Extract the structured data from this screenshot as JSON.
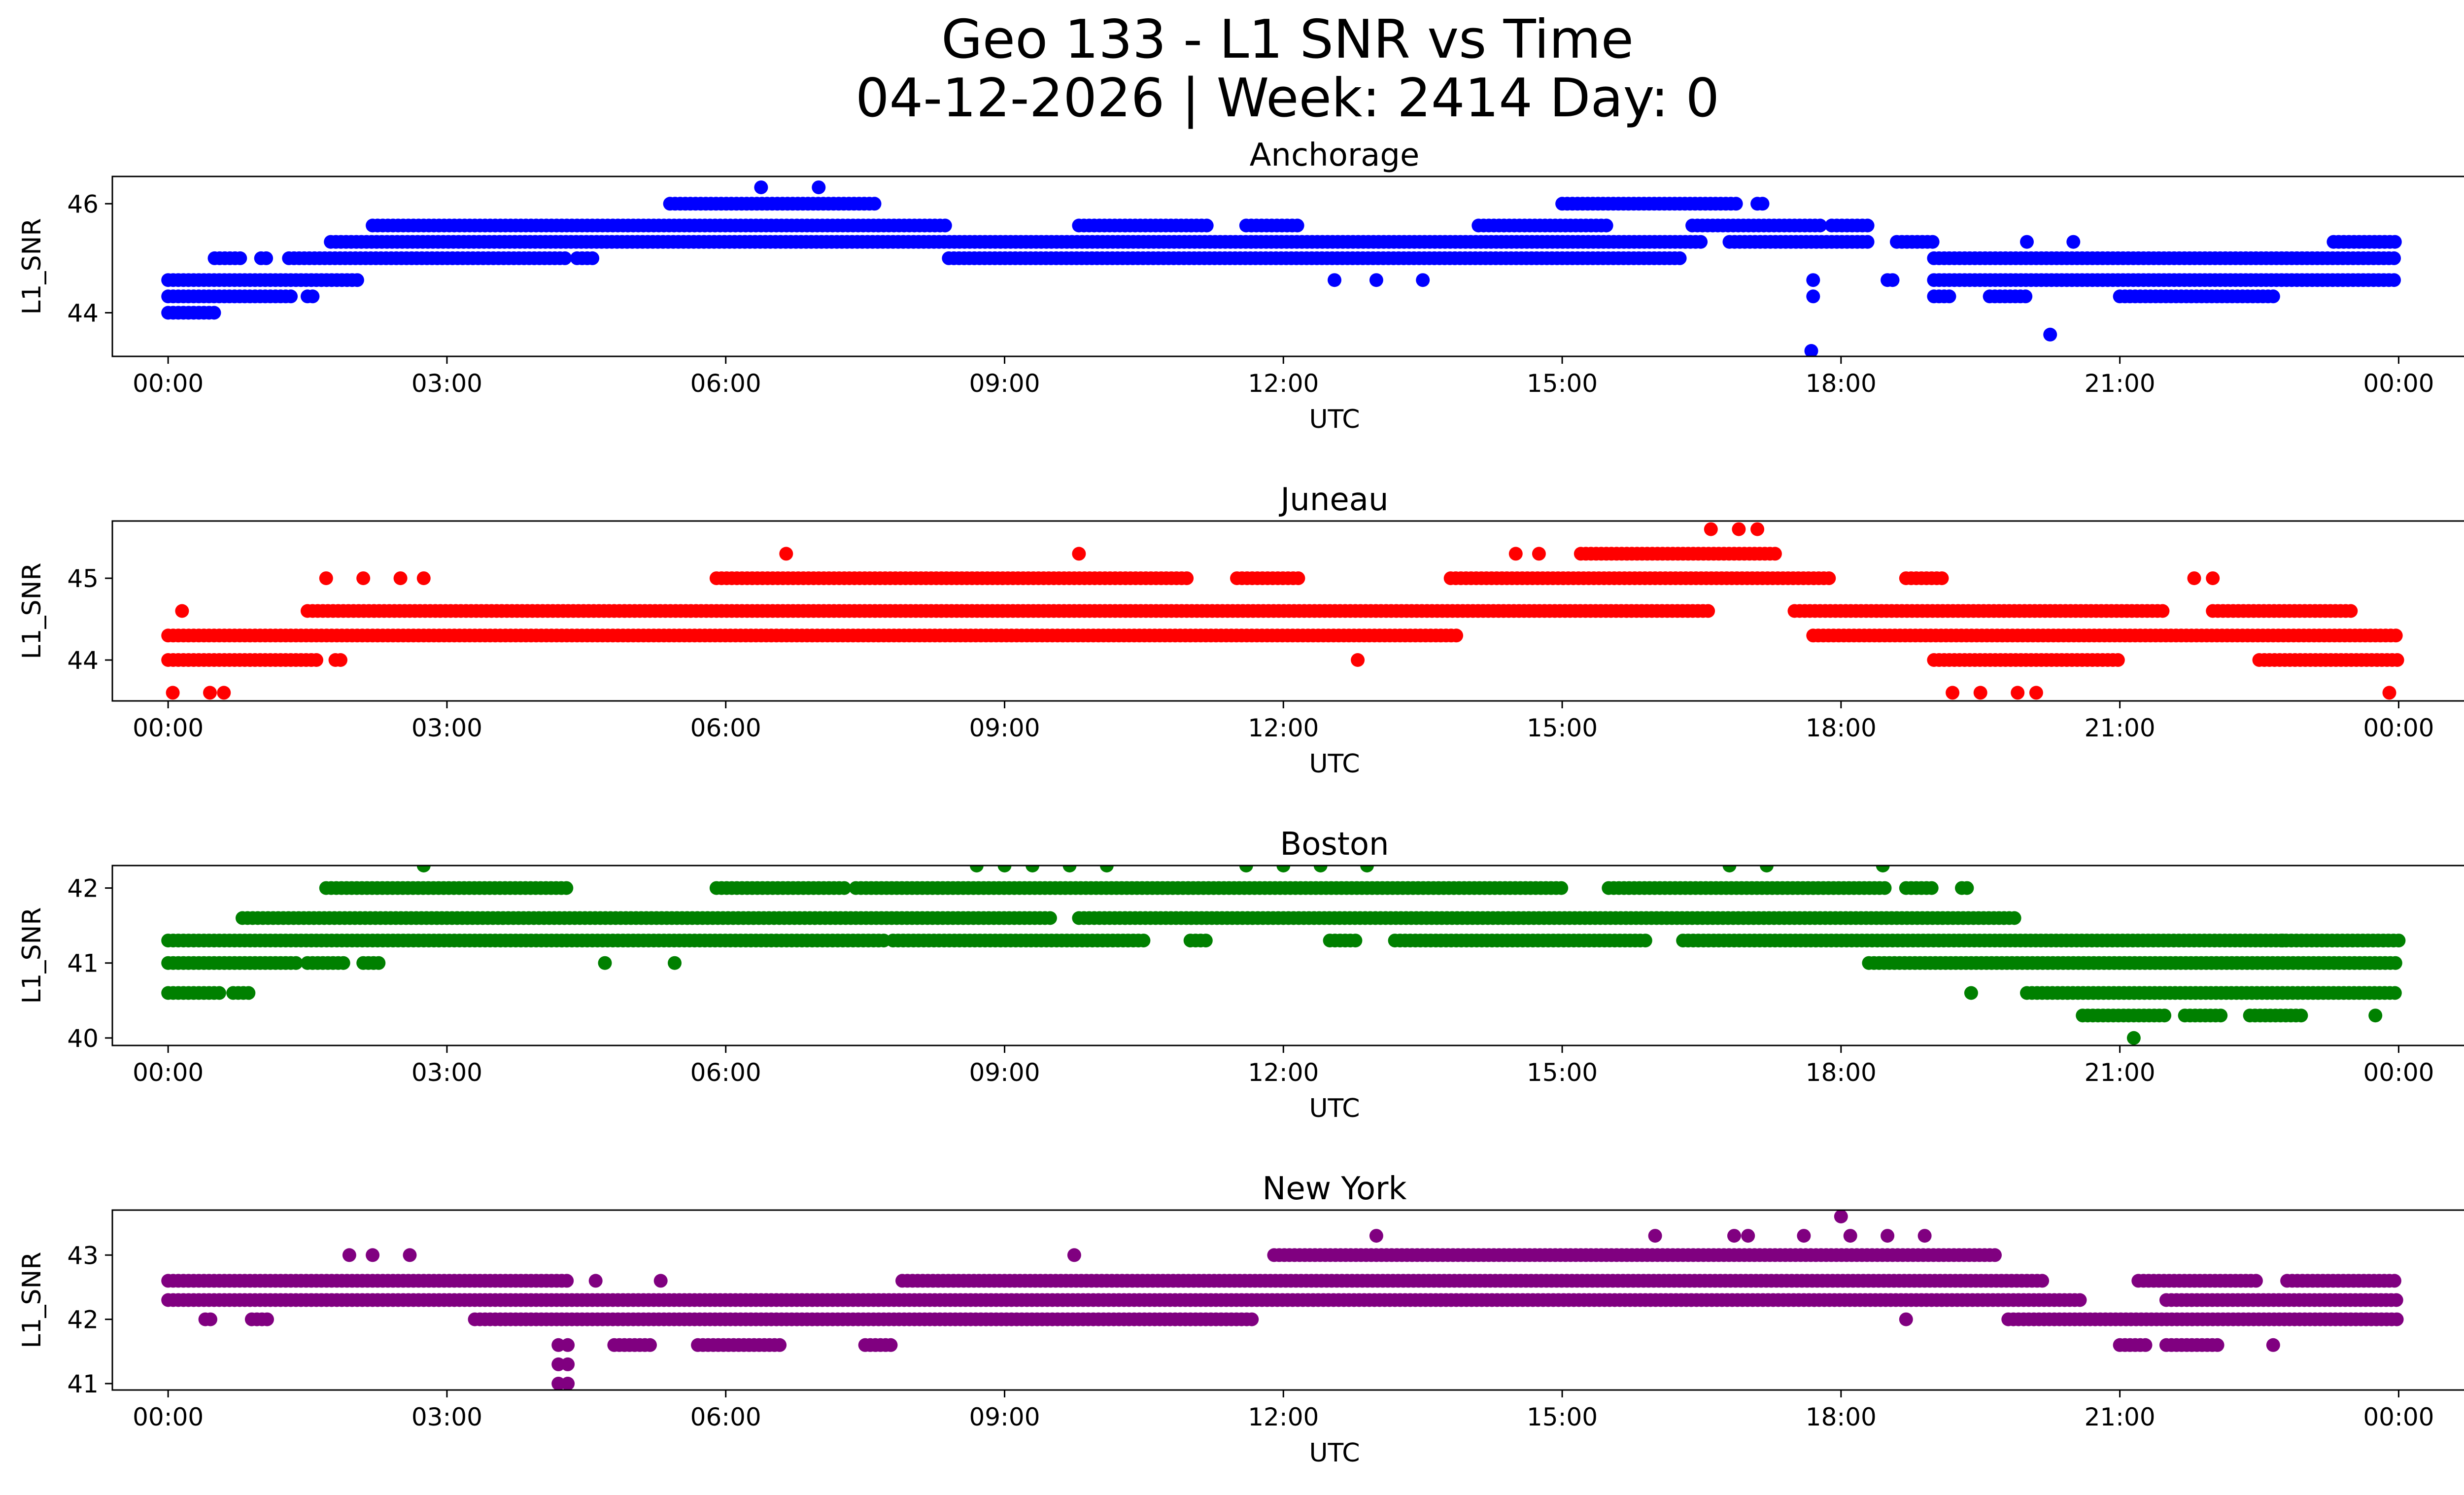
{
  "figure": {
    "title_line1": "Geo 133 - L1 SNR vs Time",
    "title_line2": "04-12-2026 | Week: 2414 Day: 0"
  },
  "chart_data": [
    {
      "type": "scatter",
      "title": "Anchorage",
      "xlabel": "UTC",
      "ylabel": "L1_SNR",
      "color": "#0000ff",
      "xlim_hours": [
        -0.6,
        25.7
      ],
      "ylim": [
        43.2,
        46.5
      ],
      "x_ticks": [
        "00:00",
        "03:00",
        "06:00",
        "09:00",
        "12:00",
        "15:00",
        "18:00",
        "21:00",
        "00:00"
      ],
      "y_ticks": [
        44,
        46
      ],
      "y_tick_labels": [
        "44",
        "46"
      ],
      "bands": [
        {
          "y": 44.0,
          "segments": [
            [
              0.0,
              0.5
            ]
          ]
        },
        {
          "y": 44.3,
          "segments": [
            [
              0.0,
              1.35
            ],
            [
              1.5,
              1.6
            ]
          ]
        },
        {
          "y": 44.6,
          "segments": [
            [
              0.0,
              2.05
            ]
          ]
        },
        {
          "y": 45.0,
          "segments": [
            [
              0.5,
              0.8
            ],
            [
              1.0,
              1.1
            ],
            [
              1.3,
              4.3
            ],
            [
              4.4,
              4.6
            ],
            [
              8.4,
              16.3
            ],
            [
              19.0,
              24.0
            ]
          ]
        },
        {
          "y": 45.3,
          "segments": [
            [
              1.75,
              16.5
            ],
            [
              16.8,
              18.3
            ],
            [
              18.6,
              19.0
            ],
            [
              23.3,
              24.0
            ]
          ]
        },
        {
          "y": 45.6,
          "segments": [
            [
              2.2,
              8.4
            ],
            [
              9.8,
              11.2
            ],
            [
              11.6,
              12.2
            ],
            [
              14.1,
              15.5
            ],
            [
              16.4,
              17.8
            ],
            [
              17.9,
              18.3
            ]
          ]
        },
        {
          "y": 46.0,
          "segments": [
            [
              5.4,
              7.6
            ],
            [
              15.0,
              16.9
            ],
            [
              17.1,
              17.2
            ]
          ]
        },
        {
          "y": 44.6,
          "segments": [
            [
              18.5,
              18.6
            ],
            [
              19.0,
              24.0
            ]
          ]
        },
        {
          "y": 44.3,
          "segments": [
            [
              19.0,
              19.2
            ],
            [
              19.6,
              20.0
            ],
            [
              21.0,
              22.7
            ]
          ]
        }
      ],
      "points": [
        {
          "x": 6.38,
          "y": 46.3
        },
        {
          "x": 7.0,
          "y": 46.3
        },
        {
          "x": 12.55,
          "y": 44.6
        },
        {
          "x": 13.0,
          "y": 44.6
        },
        {
          "x": 13.5,
          "y": 44.6
        },
        {
          "x": 17.68,
          "y": 43.3
        },
        {
          "x": 17.7,
          "y": 44.3
        },
        {
          "x": 17.7,
          "y": 44.6
        },
        {
          "x": 20.25,
          "y": 43.6
        },
        {
          "x": 20.0,
          "y": 45.3
        },
        {
          "x": 20.5,
          "y": 45.3
        }
      ]
    },
    {
      "type": "scatter",
      "title": "Juneau",
      "xlabel": "UTC",
      "ylabel": "L1_SNR",
      "color": "#ff0000",
      "xlim_hours": [
        -0.6,
        25.7
      ],
      "ylim": [
        43.5,
        45.7
      ],
      "x_ticks": [
        "00:00",
        "03:00",
        "06:00",
        "09:00",
        "12:00",
        "15:00",
        "18:00",
        "21:00",
        "00:00"
      ],
      "y_ticks": [
        44,
        45
      ],
      "y_tick_labels": [
        "44",
        "45"
      ],
      "bands": [
        {
          "y": 44.0,
          "segments": [
            [
              0.0,
              1.6
            ],
            [
              1.8,
              1.9
            ],
            [
              19.0,
              21.0
            ],
            [
              22.5,
              24.0
            ]
          ]
        },
        {
          "y": 44.3,
          "segments": [
            [
              0.0,
              13.9
            ],
            [
              17.7,
              24.0
            ]
          ]
        },
        {
          "y": 44.6,
          "segments": [
            [
              1.5,
              16.6
            ],
            [
              17.5,
              21.5
            ],
            [
              22.0,
              23.5
            ]
          ]
        },
        {
          "y": 45.0,
          "segments": [
            [
              5.9,
              11.0
            ],
            [
              11.5,
              12.2
            ],
            [
              13.8,
              17.9
            ],
            [
              18.7,
              19.1
            ]
          ]
        },
        {
          "y": 45.3,
          "segments": [
            [
              15.2,
              17.3
            ]
          ]
        }
      ],
      "points": [
        {
          "x": 0.15,
          "y": 44.6
        },
        {
          "x": 0.05,
          "y": 43.6
        },
        {
          "x": 0.45,
          "y": 43.6
        },
        {
          "x": 0.6,
          "y": 43.6
        },
        {
          "x": 6.65,
          "y": 45.3
        },
        {
          "x": 9.8,
          "y": 45.3
        },
        {
          "x": 12.8,
          "y": 44.0
        },
        {
          "x": 14.5,
          "y": 45.3
        },
        {
          "x": 14.75,
          "y": 45.3
        },
        {
          "x": 16.6,
          "y": 45.6
        },
        {
          "x": 16.9,
          "y": 45.6
        },
        {
          "x": 17.1,
          "y": 45.6
        },
        {
          "x": 1.7,
          "y": 45.0
        },
        {
          "x": 2.1,
          "y": 45.0
        },
        {
          "x": 2.5,
          "y": 45.0
        },
        {
          "x": 2.75,
          "y": 45.0
        },
        {
          "x": 19.2,
          "y": 43.6
        },
        {
          "x": 19.5,
          "y": 43.6
        },
        {
          "x": 19.9,
          "y": 43.6
        },
        {
          "x": 20.1,
          "y": 43.6
        },
        {
          "x": 23.9,
          "y": 43.6
        },
        {
          "x": 22.0,
          "y": 45.0
        },
        {
          "x": 21.8,
          "y": 45.0
        }
      ]
    },
    {
      "type": "scatter",
      "title": "Boston",
      "xlabel": "UTC",
      "ylabel": "L1_SNR",
      "color": "#008000",
      "xlim_hours": [
        -0.6,
        25.7
      ],
      "ylim": [
        39.9,
        42.3
      ],
      "x_ticks": [
        "00:00",
        "03:00",
        "06:00",
        "09:00",
        "12:00",
        "15:00",
        "18:00",
        "21:00",
        "00:00"
      ],
      "y_ticks": [
        40,
        41,
        42
      ],
      "y_tick_labels": [
        "40",
        "41",
        "42"
      ],
      "bands": [
        {
          "y": 40.6,
          "segments": [
            [
              0.0,
              0.55
            ],
            [
              0.7,
              0.9
            ],
            [
              20.0,
              24.0
            ]
          ]
        },
        {
          "y": 41.0,
          "segments": [
            [
              0.0,
              1.4
            ],
            [
              1.5,
              1.9
            ],
            [
              2.1,
              2.3
            ],
            [
              18.3,
              24.0
            ]
          ]
        },
        {
          "y": 41.3,
          "segments": [
            [
              0.0,
              7.7
            ],
            [
              7.8,
              10.5
            ],
            [
              11.0,
              11.2
            ],
            [
              12.5,
              12.8
            ],
            [
              13.2,
              15.9
            ],
            [
              16.3,
              24.0
            ]
          ]
        },
        {
          "y": 41.6,
          "segments": [
            [
              0.8,
              9.5
            ],
            [
              9.8,
              19.9
            ]
          ]
        },
        {
          "y": 42.0,
          "segments": [
            [
              1.7,
              4.3
            ],
            [
              5.9,
              7.3
            ],
            [
              7.4,
              15.0
            ],
            [
              15.5,
              18.5
            ],
            [
              18.7,
              19.0
            ],
            [
              19.3,
              19.4
            ]
          ]
        },
        {
          "y": 40.3,
          "segments": [
            [
              20.6,
              21.5
            ],
            [
              21.7,
              22.1
            ],
            [
              22.4,
              23.0
            ]
          ]
        }
      ],
      "points": [
        {
          "x": 2.75,
          "y": 42.3
        },
        {
          "x": 8.7,
          "y": 42.3
        },
        {
          "x": 9.0,
          "y": 42.3
        },
        {
          "x": 9.3,
          "y": 42.3
        },
        {
          "x": 9.7,
          "y": 42.3
        },
        {
          "x": 10.1,
          "y": 42.3
        },
        {
          "x": 11.6,
          "y": 42.3
        },
        {
          "x": 12.0,
          "y": 42.3
        },
        {
          "x": 12.4,
          "y": 42.3
        },
        {
          "x": 12.9,
          "y": 42.3
        },
        {
          "x": 16.8,
          "y": 42.3
        },
        {
          "x": 17.2,
          "y": 42.3
        },
        {
          "x": 18.45,
          "y": 42.3
        },
        {
          "x": 4.7,
          "y": 41.0
        },
        {
          "x": 5.45,
          "y": 41.0
        },
        {
          "x": 19.4,
          "y": 40.6
        },
        {
          "x": 21.15,
          "y": 40.0
        },
        {
          "x": 23.75,
          "y": 40.3
        },
        {
          "x": 22.75,
          "y": 41.3
        }
      ]
    },
    {
      "type": "scatter",
      "title": "New York",
      "xlabel": "UTC",
      "ylabel": "L1_SNR",
      "color": "#800080",
      "xlim_hours": [
        -0.6,
        25.7
      ],
      "ylim": [
        40.9,
        43.7
      ],
      "x_ticks": [
        "00:00",
        "03:00",
        "06:00",
        "09:00",
        "12:00",
        "15:00",
        "18:00",
        "21:00",
        "00:00"
      ],
      "y_ticks": [
        41,
        42,
        43
      ],
      "y_tick_labels": [
        "41",
        "42",
        "43"
      ],
      "bands": [
        {
          "y": 42.0,
          "segments": [
            [
              0.4,
              0.5
            ],
            [
              0.9,
              1.1
            ],
            [
              3.3,
              11.7
            ],
            [
              19.8,
              24.0
            ]
          ]
        },
        {
          "y": 42.3,
          "segments": [
            [
              0.0,
              20.6
            ],
            [
              21.5,
              24.0
            ]
          ]
        },
        {
          "y": 42.6,
          "segments": [
            [
              0.0,
              4.3
            ],
            [
              7.9,
              20.2
            ],
            [
              21.2,
              22.5
            ],
            [
              22.8,
              24.0
            ]
          ]
        },
        {
          "y": 43.0,
          "segments": [
            [
              11.9,
              19.7
            ]
          ]
        },
        {
          "y": 41.6,
          "segments": [
            [
              4.8,
              5.2
            ],
            [
              5.7,
              6.6
            ],
            [
              7.5,
              7.8
            ],
            [
              21.0,
              21.3
            ],
            [
              21.5,
              22.1
            ]
          ]
        }
      ],
      "points": [
        {
          "x": 1.95,
          "y": 43.0
        },
        {
          "x": 2.2,
          "y": 43.0
        },
        {
          "x": 2.6,
          "y": 43.0
        },
        {
          "x": 9.75,
          "y": 43.0
        },
        {
          "x": 4.2,
          "y": 41.3
        },
        {
          "x": 4.3,
          "y": 41.3
        },
        {
          "x": 4.2,
          "y": 41.0
        },
        {
          "x": 4.3,
          "y": 41.0
        },
        {
          "x": 4.2,
          "y": 41.6
        },
        {
          "x": 4.3,
          "y": 41.6
        },
        {
          "x": 4.6,
          "y": 42.6
        },
        {
          "x": 5.3,
          "y": 42.6
        },
        {
          "x": 13.0,
          "y": 43.3
        },
        {
          "x": 16.0,
          "y": 43.3
        },
        {
          "x": 16.85,
          "y": 43.3
        },
        {
          "x": 17.0,
          "y": 43.3
        },
        {
          "x": 17.6,
          "y": 43.3
        },
        {
          "x": 18.0,
          "y": 43.6
        },
        {
          "x": 18.1,
          "y": 43.3
        },
        {
          "x": 18.5,
          "y": 43.3
        },
        {
          "x": 18.9,
          "y": 43.3
        },
        {
          "x": 22.65,
          "y": 41.6
        },
        {
          "x": 18.7,
          "y": 42.0
        }
      ]
    }
  ]
}
